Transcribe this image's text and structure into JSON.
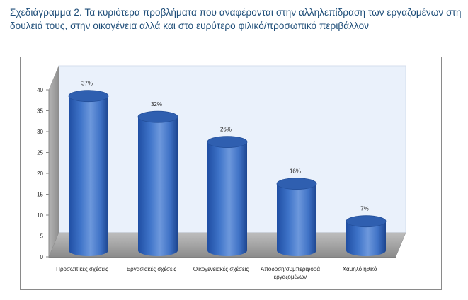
{
  "caption": "Σχεδιάγραμμα 2. Τα κυριότερα προβλήματα που αναφέρονται στην αλληλεπίδραση των εργαζομένων στη δουλειά τους, στην οικογένεια αλλά και στο ευρύτερο φιλικό/προσωπικό περιβάλλον",
  "colors": {
    "caption": "#1f4e79",
    "bar": "#3f74c9",
    "back_wall": "#eaf1fb",
    "side_wall": "#a0a0a0",
    "floor": "#a6a6a6"
  },
  "chart_data": {
    "type": "bar",
    "style": "3d-cylinder",
    "categories": [
      "Προσωπικές σχέσεις",
      "Εργασιακές σχέσεις",
      "Οικογενειακές σχέσεις",
      "Απόδοση/συμπεριφορά εργαζομένων",
      "Χαμηλό ηθικό"
    ],
    "category_lines": [
      [
        "Προσωπικές σχέσεις"
      ],
      [
        "Εργασιακές σχέσεις"
      ],
      [
        "Οικογενειακές σχέσεις"
      ],
      [
        "Απόδοση/συμπεριφορά",
        "εργαζομένων"
      ],
      [
        "Χαμηλό ηθικό"
      ]
    ],
    "values": [
      37,
      32,
      26,
      16,
      7
    ],
    "data_labels": [
      "37%",
      "32%",
      "26%",
      "16%",
      "7%"
    ],
    "ylim": [
      0,
      40
    ],
    "yticks": [
      "0",
      "5",
      "10",
      "15",
      "20",
      "25",
      "30",
      "35",
      "40"
    ],
    "xlabel": "",
    "ylabel": "",
    "title": "",
    "grid": false,
    "legend": "none"
  }
}
